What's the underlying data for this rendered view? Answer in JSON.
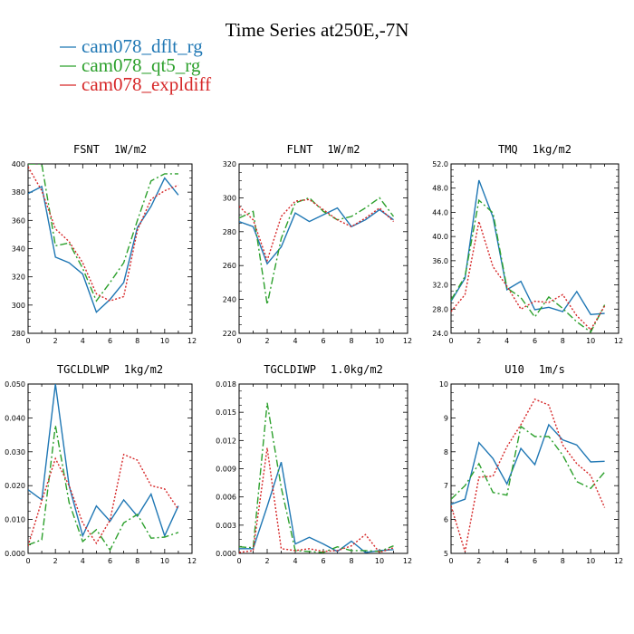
{
  "figure_title": "Time Series at250E,-7N",
  "colors": {
    "blue": "#1f77b4",
    "green": "#2ca02c",
    "red": "#d62728"
  },
  "legend": [
    {
      "label": "cam078_dflt_rg",
      "color": "#1f77b4",
      "dash": "solid"
    },
    {
      "label": "cam078_qt5_rg",
      "color": "#2ca02c",
      "dash": "dashdot"
    },
    {
      "label": "cam078_expldiff",
      "color": "#d62728",
      "dash": "dotted"
    }
  ],
  "chart_data": [
    {
      "type": "line",
      "var": "FSNT",
      "units": "1W/m2",
      "x": [
        0,
        1,
        2,
        3,
        4,
        5,
        6,
        7,
        8,
        9,
        10,
        11
      ],
      "xlim": [
        0,
        12
      ],
      "xticks": [
        "0",
        "2",
        "4",
        "6",
        "8",
        "10",
        "12"
      ],
      "ylim": [
        280,
        400
      ],
      "yticks": [
        "280",
        "300",
        "320",
        "340",
        "360",
        "380",
        "400"
      ],
      "series": [
        {
          "name": "cam078_dflt_rg",
          "values": [
            379,
            384,
            334,
            330,
            322,
            295,
            304,
            316,
            355,
            370,
            390,
            378
          ]
        },
        {
          "name": "cam078_qt5_rg",
          "values": [
            400,
            400,
            342,
            344,
            326,
            303,
            316,
            330,
            360,
            388,
            393,
            393
          ]
        },
        {
          "name": "cam078_expldiff",
          "values": [
            398,
            381,
            354,
            345,
            330,
            308,
            303,
            306,
            353,
            375,
            381,
            385
          ]
        }
      ]
    },
    {
      "type": "line",
      "var": "FLNT",
      "units": "1W/m2",
      "x": [
        0,
        1,
        2,
        3,
        4,
        5,
        6,
        7,
        8,
        9,
        10,
        11
      ],
      "xlim": [
        0,
        12
      ],
      "xticks": [
        "0",
        "2",
        "4",
        "6",
        "8",
        "10",
        "12"
      ],
      "ylim": [
        220,
        320
      ],
      "yticks": [
        "220",
        "240",
        "260",
        "280",
        "300",
        "320"
      ],
      "series": [
        {
          "name": "cam078_dflt_rg",
          "values": [
            286,
            283,
            261,
            271,
            291,
            286,
            290,
            294,
            283,
            287,
            293,
            287
          ]
        },
        {
          "name": "cam078_qt5_rg",
          "values": [
            288,
            292,
            237,
            276,
            297,
            300,
            292,
            287,
            289,
            294,
            300,
            289
          ]
        },
        {
          "name": "cam078_expldiff",
          "values": [
            295,
            287,
            263,
            289,
            298,
            299,
            293,
            287,
            283,
            288,
            294,
            286
          ]
        }
      ]
    },
    {
      "type": "line",
      "var": "TMQ",
      "units": "1kg/m2",
      "x": [
        0,
        1,
        2,
        3,
        4,
        5,
        6,
        7,
        8,
        9,
        10,
        11
      ],
      "xlim": [
        0,
        12
      ],
      "xticks": [
        "0",
        "2",
        "4",
        "6",
        "8",
        "10",
        "12"
      ],
      "ylim": [
        24,
        52
      ],
      "yticks": [
        "24.0",
        "28.0",
        "32.0",
        "36.0",
        "40.0",
        "44.0",
        "48.0",
        "52.0"
      ],
      "series": [
        {
          "name": "cam078_dflt_rg",
          "values": [
            29.3,
            33.1,
            49.3,
            43.2,
            31.2,
            32.6,
            27.9,
            28.3,
            27.6,
            30.9,
            27.1,
            27.3
          ]
        },
        {
          "name": "cam078_qt5_rg",
          "values": [
            29.5,
            33.4,
            46.0,
            43.9,
            31.5,
            29.9,
            26.7,
            30.0,
            28.1,
            25.9,
            24.2,
            28.7
          ]
        },
        {
          "name": "cam078_expldiff",
          "values": [
            27.6,
            30.4,
            42.5,
            35.0,
            31.8,
            28.0,
            29.3,
            29.1,
            30.4,
            26.9,
            24.6,
            28.5
          ]
        }
      ]
    },
    {
      "type": "line",
      "var": "TGCLDLWP",
      "units": "1kg/m2",
      "x": [
        0,
        1,
        2,
        3,
        4,
        5,
        6,
        7,
        8,
        9,
        10,
        11
      ],
      "xlim": [
        0,
        12
      ],
      "xticks": [
        "0",
        "2",
        "4",
        "6",
        "8",
        "10",
        "12"
      ],
      "ylim": [
        0,
        0.05
      ],
      "yticks": [
        "0.000",
        "0.010",
        "0.020",
        "0.030",
        "0.040",
        "0.050"
      ],
      "series": [
        {
          "name": "cam078_dflt_rg",
          "values": [
            0.0188,
            0.0158,
            0.05,
            0.02,
            0.0052,
            0.014,
            0.0095,
            0.0158,
            0.011,
            0.0175,
            0.0052,
            0.014
          ]
        },
        {
          "name": "cam078_qt5_rg",
          "values": [
            0.0025,
            0.004,
            0.0378,
            0.015,
            0.0035,
            0.007,
            0.001,
            0.009,
            0.0115,
            0.0045,
            0.0048,
            0.0062
          ]
        },
        {
          "name": "cam078_expldiff",
          "values": [
            0.0022,
            0.0155,
            0.028,
            0.02,
            0.009,
            0.003,
            0.0098,
            0.0292,
            0.0275,
            0.02,
            0.019,
            0.013
          ]
        }
      ]
    },
    {
      "type": "line",
      "var": "TGCLDIWP",
      "units": "1.0kg/m2",
      "x": [
        0,
        1,
        2,
        3,
        4,
        5,
        6,
        7,
        8,
        9,
        10,
        11
      ],
      "xlim": [
        0,
        12
      ],
      "xticks": [
        "0",
        "2",
        "4",
        "6",
        "8",
        "10",
        "12"
      ],
      "ylim": [
        0,
        0.018
      ],
      "yticks": [
        "0.000",
        "0.003",
        "0.006",
        "0.009",
        "0.012",
        "0.015",
        "0.018"
      ],
      "series": [
        {
          "name": "cam078_dflt_rg",
          "values": [
            0.0005,
            0.0005,
            0.005,
            0.0097,
            0.001,
            0.0017,
            0.001,
            0.0002,
            0.0013,
            0.0001,
            0.0003,
            0.0004
          ]
        },
        {
          "name": "cam078_qt5_rg",
          "values": [
            0.0007,
            0.0006,
            0.016,
            0.007,
            0.0003,
            0.0002,
            0.0001,
            0.0007,
            0.0003,
            0.0003,
            0.0002,
            0.0008
          ]
        },
        {
          "name": "cam078_expldiff",
          "values": [
            0.0001,
            0.0003,
            0.0112,
            0.0005,
            0.0003,
            0.0005,
            0.0002,
            0.0003,
            0.0008,
            0.002,
            0.0001,
            0.0006
          ]
        }
      ]
    },
    {
      "type": "line",
      "var": "U10",
      "units": "1m/s",
      "x": [
        0,
        1,
        2,
        3,
        4,
        5,
        6,
        7,
        8,
        9,
        10,
        11
      ],
      "xlim": [
        0,
        12
      ],
      "xticks": [
        "0",
        "2",
        "4",
        "6",
        "8",
        "10",
        "12"
      ],
      "ylim": [
        5,
        10
      ],
      "yticks": [
        "5",
        "6",
        "7",
        "8",
        "9",
        "10"
      ],
      "series": [
        {
          "name": "cam078_dflt_rg",
          "values": [
            6.45,
            6.6,
            8.27,
            7.8,
            7.05,
            8.1,
            7.62,
            8.8,
            8.35,
            8.2,
            7.7,
            7.72
          ]
        },
        {
          "name": "cam078_qt5_rg",
          "values": [
            6.6,
            7.0,
            7.65,
            6.8,
            6.72,
            8.75,
            8.45,
            8.45,
            7.9,
            7.12,
            6.92,
            7.4
          ]
        },
        {
          "name": "cam078_expldiff",
          "values": [
            6.4,
            5.05,
            7.25,
            7.28,
            8.15,
            8.8,
            9.55,
            9.38,
            8.2,
            7.65,
            7.3,
            6.35
          ]
        }
      ]
    }
  ]
}
